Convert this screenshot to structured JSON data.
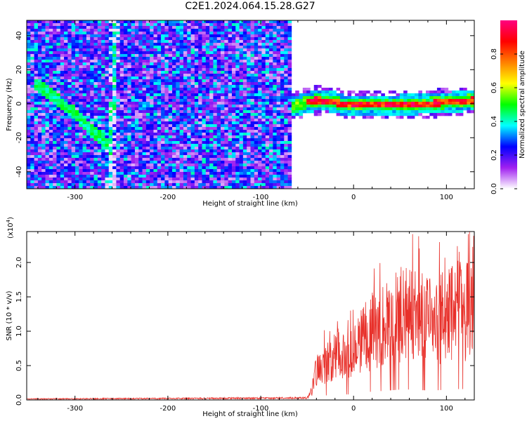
{
  "figure": {
    "title": "C2E1.2024.064.15.28.G27"
  },
  "chart_data": [
    {
      "type": "heatmap",
      "xlabel": "Height of straight line (km)",
      "ylabel": "Frequency (Hz)",
      "xlim": [
        -352,
        130
      ],
      "ylim": [
        -50,
        49
      ],
      "xticks": [
        -300,
        -200,
        -100,
        0,
        100
      ],
      "xtick_labels": [
        "-300",
        "-200",
        "-100",
        "0",
        "100"
      ],
      "yticks": [
        -40,
        -20,
        0,
        20,
        40
      ],
      "ytick_labels": [
        "-40",
        "-20",
        "0",
        "20",
        "40"
      ],
      "colorbar": {
        "label": "Normalized spectral amplitude",
        "range": [
          0,
          1
        ],
        "ticks": [
          0.0,
          0.2,
          0.4,
          0.6,
          0.8
        ],
        "tick_labels": [
          "0.0",
          "0.2",
          "0.4",
          "0.6",
          "0.8"
        ],
        "colors": [
          "#ffffff",
          "#a020f0",
          "#0000ff",
          "#00ffff",
          "#00ff00",
          "#ffff00",
          "#ff8000",
          "#ff0000",
          "#ff0080"
        ]
      },
      "noise_region_x": [
        -352,
        -66
      ],
      "signal_track": [
        {
          "x": -66,
          "y": -2
        },
        {
          "x": -55,
          "y": 0
        },
        {
          "x": -40,
          "y": 2
        },
        {
          "x": -20,
          "y": 1
        },
        {
          "x": -10,
          "y": -1
        },
        {
          "x": 0,
          "y": -1
        },
        {
          "x": 40,
          "y": -1
        },
        {
          "x": 80,
          "y": 0
        },
        {
          "x": 110,
          "y": 1
        },
        {
          "x": 130,
          "y": 2
        }
      ],
      "diagonal_track": [
        {
          "x": -345,
          "y": 12
        },
        {
          "x": -330,
          "y": 7
        },
        {
          "x": -315,
          "y": 0
        },
        {
          "x": -300,
          "y": -6
        },
        {
          "x": -285,
          "y": -14
        },
        {
          "x": -272,
          "y": -20
        },
        {
          "x": -260,
          "y": -28
        }
      ],
      "vertical_track": [
        {
          "x": -262,
          "y": -50
        },
        {
          "x": -257,
          "y": 49
        }
      ]
    },
    {
      "type": "line",
      "xlabel": "Height of straight line (km)",
      "ylabel": "SNR (10 * v/v)",
      "multiplier_label": "(x10",
      "multiplier_exp": "4",
      "multiplier_close": ")",
      "xlim": [
        -352,
        130
      ],
      "ylim": [
        0,
        24500
      ],
      "xticks": [
        -300,
        -200,
        -100,
        0,
        100
      ],
      "xtick_labels": [
        "-300",
        "-200",
        "-100",
        "0",
        "100"
      ],
      "yticks": [
        0,
        5000,
        10000,
        15000,
        20000
      ],
      "ytick_labels": [
        "0.0",
        "0.5",
        "1.0",
        "1.5",
        "2.0"
      ],
      "color": "#e8302a",
      "envelope": [
        {
          "x": -352,
          "y": 150
        },
        {
          "x": -50,
          "y": 300
        },
        {
          "x": -45,
          "y": 1500
        },
        {
          "x": -40,
          "y": 5500
        },
        {
          "x": -30,
          "y": 6500
        },
        {
          "x": -20,
          "y": 8000
        },
        {
          "x": 0,
          "y": 8000
        },
        {
          "x": 10,
          "y": 11000
        },
        {
          "x": 25,
          "y": 12500
        },
        {
          "x": 40,
          "y": 14000
        },
        {
          "x": 55,
          "y": 15500
        },
        {
          "x": 70,
          "y": 14500
        },
        {
          "x": 85,
          "y": 13500
        },
        {
          "x": 100,
          "y": 15000
        },
        {
          "x": 115,
          "y": 16000
        },
        {
          "x": 130,
          "y": 15000
        }
      ]
    }
  ]
}
